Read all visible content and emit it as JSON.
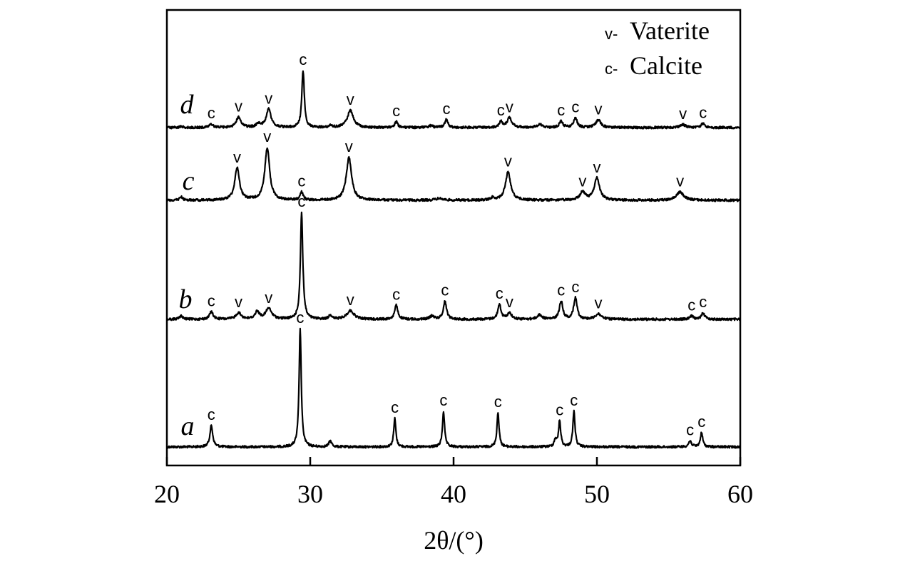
{
  "chart_data": {
    "type": "line",
    "title": "",
    "xlabel": "2θ/(°)",
    "ylabel": "",
    "xlim": [
      20,
      60
    ],
    "x_ticks": [
      20,
      30,
      40,
      50,
      60
    ],
    "x_tick_labels": [
      "20",
      "30",
      "40",
      "50",
      "60"
    ],
    "y_axis_values_shown": false,
    "grid": false,
    "legend": {
      "placement": "top-right",
      "entries": [
        {
          "symbol": "v",
          "separator": "-",
          "label": "Vaterite"
        },
        {
          "symbol": "c",
          "separator": "-",
          "label": "Calcite"
        }
      ]
    },
    "series": [
      {
        "name": "a",
        "peaks": [
          {
            "x": 23.1,
            "h": 0.18,
            "w": 0.12,
            "phase": "c"
          },
          {
            "x": 29.3,
            "h": 1.0,
            "w": 0.09,
            "phase": "c"
          },
          {
            "x": 31.4,
            "h": 0.05,
            "w": 0.12,
            "phase": ""
          },
          {
            "x": 35.9,
            "h": 0.24,
            "w": 0.09,
            "phase": "c"
          },
          {
            "x": 39.3,
            "h": 0.3,
            "w": 0.09,
            "phase": "c"
          },
          {
            "x": 43.1,
            "h": 0.29,
            "w": 0.09,
            "phase": "c"
          },
          {
            "x": 47.1,
            "h": 0.06,
            "w": 0.1,
            "phase": ""
          },
          {
            "x": 47.4,
            "h": 0.22,
            "w": 0.09,
            "phase": "c"
          },
          {
            "x": 48.4,
            "h": 0.3,
            "w": 0.09,
            "phase": "c"
          },
          {
            "x": 56.5,
            "h": 0.05,
            "w": 0.12,
            "phase": "c"
          },
          {
            "x": 57.3,
            "h": 0.12,
            "w": 0.1,
            "phase": "c"
          }
        ]
      },
      {
        "name": "b",
        "peaks": [
          {
            "x": 21.0,
            "h": 0.03,
            "w": 0.15,
            "phase": ""
          },
          {
            "x": 23.1,
            "h": 0.07,
            "w": 0.15,
            "phase": "c"
          },
          {
            "x": 25.0,
            "h": 0.06,
            "w": 0.22,
            "phase": "v"
          },
          {
            "x": 26.3,
            "h": 0.07,
            "w": 0.18,
            "phase": ""
          },
          {
            "x": 27.1,
            "h": 0.1,
            "w": 0.25,
            "phase": "v"
          },
          {
            "x": 29.4,
            "h": 1.0,
            "w": 0.1,
            "phase": "c"
          },
          {
            "x": 31.4,
            "h": 0.04,
            "w": 0.12,
            "phase": ""
          },
          {
            "x": 32.8,
            "h": 0.08,
            "w": 0.3,
            "phase": "v"
          },
          {
            "x": 36.0,
            "h": 0.13,
            "w": 0.13,
            "phase": "c"
          },
          {
            "x": 38.5,
            "h": 0.03,
            "w": 0.2,
            "phase": ""
          },
          {
            "x": 39.4,
            "h": 0.17,
            "w": 0.13,
            "phase": "c"
          },
          {
            "x": 43.2,
            "h": 0.14,
            "w": 0.13,
            "phase": "c"
          },
          {
            "x": 43.9,
            "h": 0.06,
            "w": 0.18,
            "phase": "v"
          },
          {
            "x": 46.0,
            "h": 0.04,
            "w": 0.2,
            "phase": ""
          },
          {
            "x": 47.5,
            "h": 0.17,
            "w": 0.14,
            "phase": "c"
          },
          {
            "x": 48.5,
            "h": 0.2,
            "w": 0.14,
            "phase": "c"
          },
          {
            "x": 50.1,
            "h": 0.05,
            "w": 0.25,
            "phase": "v"
          },
          {
            "x": 56.6,
            "h": 0.03,
            "w": 0.15,
            "phase": "c"
          },
          {
            "x": 57.4,
            "h": 0.06,
            "w": 0.14,
            "phase": "c"
          }
        ]
      },
      {
        "name": "c",
        "peaks": [
          {
            "x": 21.0,
            "h": 0.06,
            "w": 0.12,
            "phase": ""
          },
          {
            "x": 24.9,
            "h": 0.55,
            "w": 0.2,
            "phase": "v"
          },
          {
            "x": 27.0,
            "h": 0.9,
            "w": 0.2,
            "phase": "v"
          },
          {
            "x": 29.4,
            "h": 0.14,
            "w": 0.12,
            "phase": "c"
          },
          {
            "x": 32.7,
            "h": 0.73,
            "w": 0.22,
            "phase": "v"
          },
          {
            "x": 39.0,
            "h": 0.03,
            "w": 0.3,
            "phase": ""
          },
          {
            "x": 42.7,
            "h": 0.04,
            "w": 0.12,
            "phase": ""
          },
          {
            "x": 43.8,
            "h": 0.48,
            "w": 0.22,
            "phase": "v"
          },
          {
            "x": 49.0,
            "h": 0.14,
            "w": 0.22,
            "phase": "v"
          },
          {
            "x": 50.0,
            "h": 0.38,
            "w": 0.22,
            "phase": "v"
          },
          {
            "x": 55.8,
            "h": 0.14,
            "w": 0.3,
            "phase": "v"
          }
        ]
      },
      {
        "name": "d",
        "peaks": [
          {
            "x": 21.0,
            "h": 0.02,
            "w": 0.15,
            "phase": ""
          },
          {
            "x": 23.1,
            "h": 0.06,
            "w": 0.15,
            "phase": "c"
          },
          {
            "x": 25.0,
            "h": 0.18,
            "w": 0.2,
            "phase": "v"
          },
          {
            "x": 26.4,
            "h": 0.06,
            "w": 0.18,
            "phase": ""
          },
          {
            "x": 27.1,
            "h": 0.32,
            "w": 0.2,
            "phase": "v"
          },
          {
            "x": 29.5,
            "h": 1.0,
            "w": 0.1,
            "phase": "c"
          },
          {
            "x": 31.4,
            "h": 0.04,
            "w": 0.12,
            "phase": ""
          },
          {
            "x": 32.8,
            "h": 0.3,
            "w": 0.25,
            "phase": "v"
          },
          {
            "x": 36.0,
            "h": 0.1,
            "w": 0.13,
            "phase": "c"
          },
          {
            "x": 38.4,
            "h": 0.03,
            "w": 0.2,
            "phase": ""
          },
          {
            "x": 39.5,
            "h": 0.14,
            "w": 0.13,
            "phase": "c"
          },
          {
            "x": 43.3,
            "h": 0.11,
            "w": 0.13,
            "phase": "c"
          },
          {
            "x": 43.9,
            "h": 0.17,
            "w": 0.2,
            "phase": "v"
          },
          {
            "x": 46.0,
            "h": 0.06,
            "w": 0.2,
            "phase": ""
          },
          {
            "x": 47.5,
            "h": 0.11,
            "w": 0.14,
            "phase": "c"
          },
          {
            "x": 48.5,
            "h": 0.17,
            "w": 0.14,
            "phase": "c"
          },
          {
            "x": 50.1,
            "h": 0.13,
            "w": 0.22,
            "phase": "v"
          },
          {
            "x": 56.0,
            "h": 0.05,
            "w": 0.25,
            "phase": "v"
          },
          {
            "x": 57.4,
            "h": 0.07,
            "w": 0.14,
            "phase": "c"
          }
        ]
      }
    ]
  }
}
